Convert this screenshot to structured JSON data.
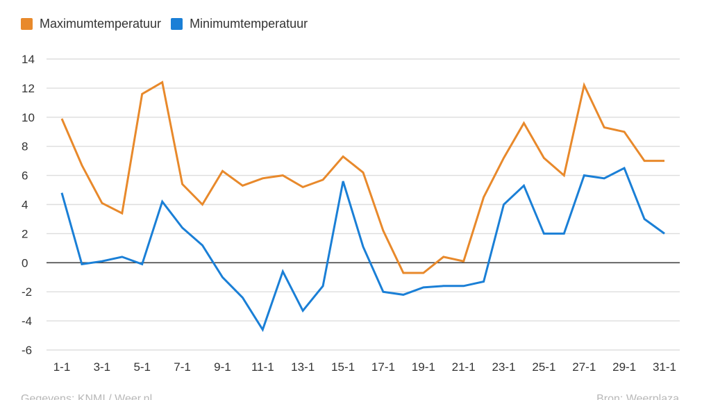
{
  "colors": {
    "max": "#e8892b",
    "min": "#1a7fd6",
    "grid": "#dddddd",
    "zero": "#444444",
    "text": "#333333"
  },
  "legend": [
    {
      "key": "max",
      "label": "Maximumtemperatuur",
      "color": "#e8892b"
    },
    {
      "key": "min",
      "label": "Minimumtemperatuur",
      "color": "#1a7fd6"
    }
  ],
  "footer": {
    "left": "Gegevens: KNMI / Weer.nl",
    "right": "Bron: Weerplaza"
  },
  "chart_data": {
    "type": "line",
    "title": "",
    "xlabel": "",
    "ylabel": "",
    "x": [
      "1-1",
      "2-1",
      "3-1",
      "4-1",
      "5-1",
      "6-1",
      "7-1",
      "8-1",
      "9-1",
      "10-1",
      "11-1",
      "12-1",
      "13-1",
      "14-1",
      "15-1",
      "16-1",
      "17-1",
      "18-1",
      "19-1",
      "20-1",
      "21-1",
      "22-1",
      "23-1",
      "24-1",
      "25-1",
      "26-1",
      "27-1",
      "28-1",
      "29-1",
      "30-1",
      "31-1"
    ],
    "xticklabels": [
      "1-1",
      "3-1",
      "5-1",
      "7-1",
      "9-1",
      "11-1",
      "13-1",
      "15-1",
      "17-1",
      "19-1",
      "21-1",
      "23-1",
      "25-1",
      "27-1",
      "29-1",
      "31-1"
    ],
    "ylim": [
      -6,
      14
    ],
    "yticks": [
      -6,
      -4,
      -2,
      0,
      2,
      4,
      6,
      8,
      10,
      12,
      14
    ],
    "grid": true,
    "legend_position": "top-left",
    "series": [
      {
        "name": "Maximumtemperatuur",
        "color": "#e8892b",
        "values": [
          9.9,
          6.7,
          4.1,
          3.4,
          11.6,
          12.4,
          5.4,
          4.0,
          6.3,
          5.3,
          5.8,
          6.0,
          5.2,
          5.7,
          7.3,
          6.2,
          2.2,
          -0.7,
          -0.7,
          0.4,
          0.1,
          4.5,
          7.2,
          9.6,
          7.2,
          6.0,
          12.2,
          9.3,
          9.0,
          7.0,
          7.0
        ]
      },
      {
        "name": "Minimumtemperatuur",
        "color": "#1a7fd6",
        "values": [
          4.8,
          -0.1,
          0.1,
          0.4,
          -0.1,
          4.2,
          2.4,
          1.2,
          -1.0,
          -2.4,
          -4.6,
          -0.6,
          -3.3,
          -1.6,
          5.6,
          1.1,
          -2.0,
          -2.2,
          -1.7,
          -1.6,
          -1.6,
          -1.3,
          4.0,
          5.3,
          2.0,
          2.0,
          6.0,
          5.8,
          6.5,
          3.0,
          2.0
        ]
      }
    ]
  }
}
